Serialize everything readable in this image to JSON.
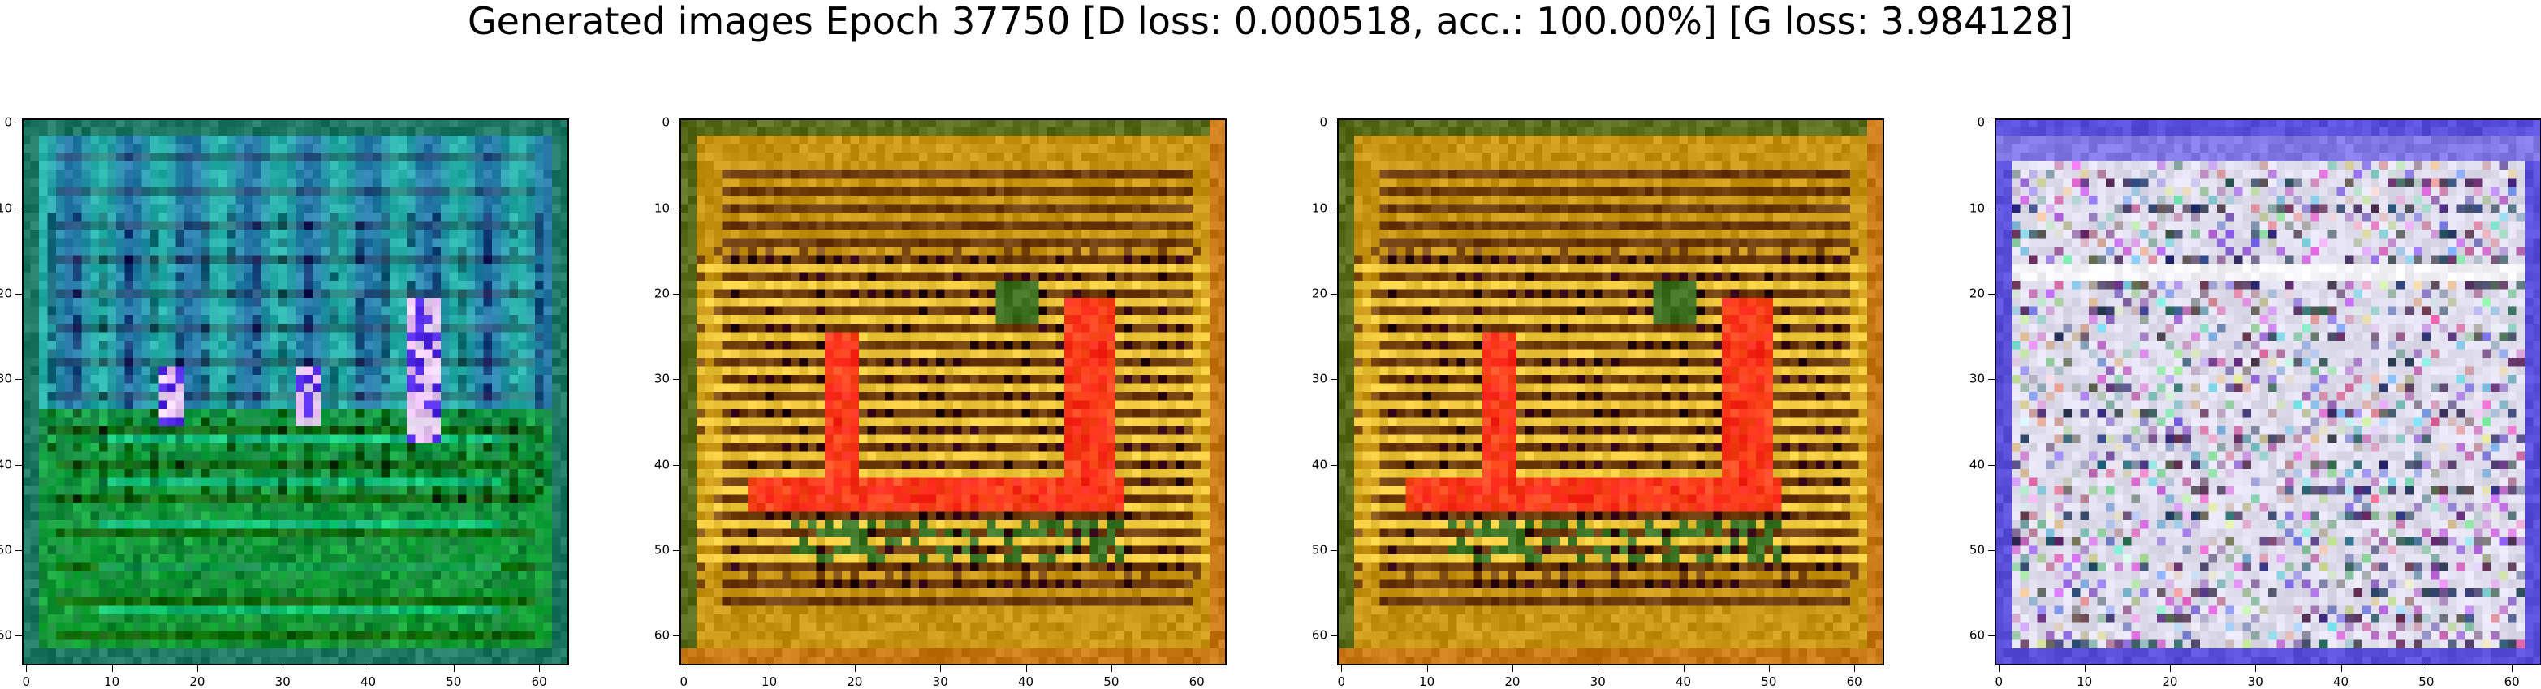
{
  "figure": {
    "title": "Generated images Epoch 37750 [D loss: 0.000518, acc.: 100.00%] [G loss: 3.984128]"
  },
  "axes": {
    "ticks": [
      "0",
      "10",
      "20",
      "30",
      "40",
      "50",
      "60"
    ],
    "tick_values": [
      0,
      10,
      20,
      30,
      40,
      50,
      60
    ],
    "range": [
      -0.5,
      63.5
    ]
  },
  "panels": [
    {
      "name": "generated-image-1",
      "palette": "green-teal",
      "base": "#2aa8a0",
      "accent": "#1e8c2a"
    },
    {
      "name": "generated-image-2",
      "palette": "orange-red",
      "base": "#c8960f",
      "accent": "#ff2a1a"
    },
    {
      "name": "generated-image-3",
      "palette": "orange-red",
      "base": "#c8960f",
      "accent": "#ff2a1a"
    },
    {
      "name": "generated-image-4",
      "palette": "lavender-noise",
      "base": "#dcd8ee",
      "accent": "#5a4ae0"
    }
  ]
}
